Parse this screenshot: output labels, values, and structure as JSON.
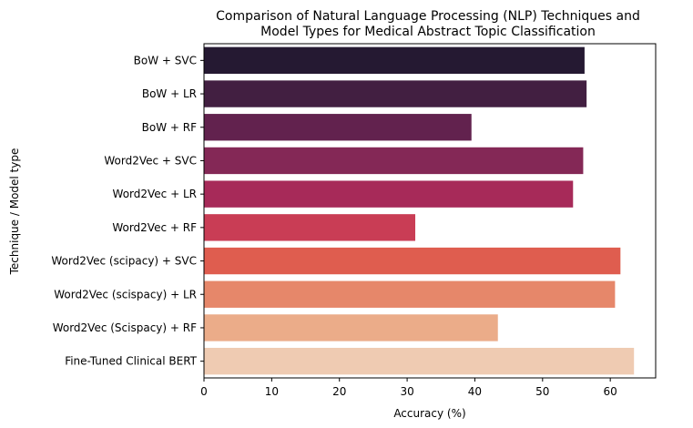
{
  "chart_data": {
    "type": "bar",
    "orientation": "horizontal",
    "title_lines": [
      "Comparison of Natural Language Processing (NLP) Techniques and",
      "Model Types for Medical Abstract Topic Classification"
    ],
    "xlabel": "Accuracy (%)",
    "ylabel": "Technique / Model type",
    "xlim": [
      0,
      66.7
    ],
    "xticks": [
      0,
      10,
      20,
      30,
      40,
      50,
      60
    ],
    "grid": false,
    "legend": "none",
    "categories": [
      "BoW + SVC",
      "BoW + LR",
      "BoW + RF",
      "Word2Vec + SVC",
      "Word2Vec + LR",
      "Word2Vec + RF",
      "Word2Vec (scipacy) + SVC",
      "Word2Vec (scispacy) + LR",
      "Word2Vec (Scispacy) + RF",
      "Fine-Tuned Clinical BERT"
    ],
    "values": [
      56.2,
      56.5,
      39.5,
      56.0,
      54.5,
      31.2,
      61.5,
      60.7,
      43.4,
      63.5
    ],
    "colors": [
      "#251932",
      "#421f41",
      "#62224e",
      "#842856",
      "#a72a59",
      "#c93d55",
      "#df5d4f",
      "#e6876a",
      "#ebac89",
      "#efcbb2"
    ]
  }
}
